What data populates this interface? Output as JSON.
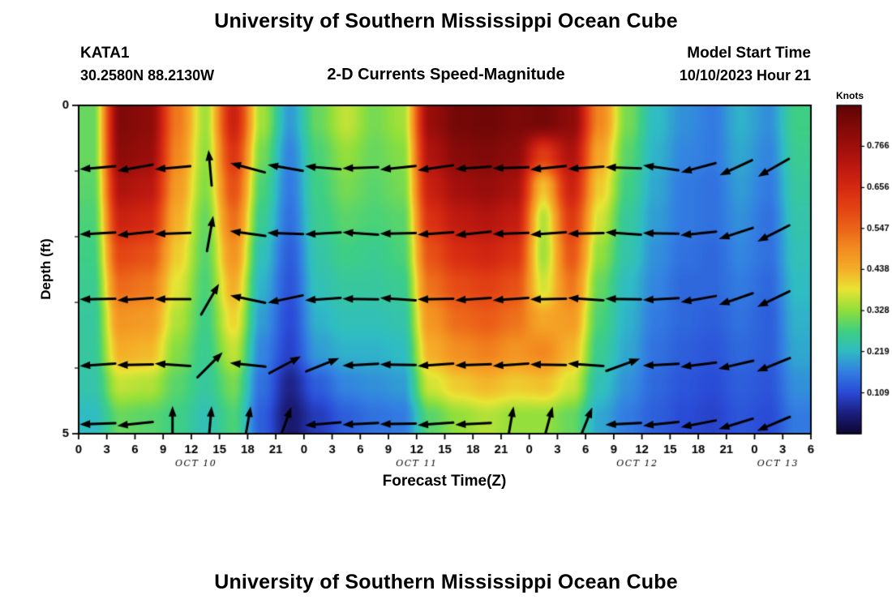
{
  "page": {
    "top_title": "University of Southern Mississippi Ocean Cube",
    "bottom_title": "University of Southern Mississippi Ocean Cube"
  },
  "header": {
    "station": "KATA1",
    "coordinates": "30.2580N  88.2130W",
    "subtitle": "2-D Currents Speed-Magnitude",
    "model_start_label": "Model Start Time",
    "model_start_value": "10/10/2023 Hour 21"
  },
  "chart_data": {
    "type": "heatmap",
    "title": "2-D Currents Speed-Magnitude",
    "xlabel": "Forecast Time(Z)",
    "ylabel": "Depth (ft)",
    "colorbar_label": "Knots",
    "x_range_hours": [
      0,
      78
    ],
    "x_major_tick_step_hours": 3,
    "x_tick_labels": [
      "0",
      "3",
      "6",
      "9",
      "12",
      "15",
      "18",
      "21",
      "0",
      "3",
      "6",
      "9",
      "12",
      "15",
      "18",
      "21",
      "0",
      "3",
      "6",
      "9",
      "12",
      "15",
      "18",
      "21",
      "0",
      "3",
      "6"
    ],
    "date_labels": [
      {
        "label": "OCT 10",
        "t": 12.5
      },
      {
        "label": "OCT 11",
        "t": 36
      },
      {
        "label": "OCT 12",
        "t": 59.5
      },
      {
        "label": "OCT 13",
        "t": 74.5
      }
    ],
    "depth_range_ft": [
      0,
      5
    ],
    "y_major_ticks": [
      0,
      5
    ],
    "y_minor_ticks": [
      1,
      2,
      3,
      4
    ],
    "y_tick_labels": [
      "0",
      "5"
    ],
    "value_units": "Knots",
    "value_range": [
      0,
      0.875
    ],
    "colorbar_ticks": [
      0.109,
      0.219,
      0.328,
      0.438,
      0.547,
      0.656,
      0.766
    ],
    "colormap_stops": [
      [
        0.0,
        "#0e0833"
      ],
      [
        0.06,
        "#1c1e7e"
      ],
      [
        0.125,
        "#2a4bd7"
      ],
      [
        0.19,
        "#3381e2"
      ],
      [
        0.25,
        "#2fbcc4"
      ],
      [
        0.31,
        "#3ecf83"
      ],
      [
        0.375,
        "#90df3b"
      ],
      [
        0.44,
        "#e9e434"
      ],
      [
        0.505,
        "#f5ab28"
      ],
      [
        0.565,
        "#f28c20"
      ],
      [
        0.625,
        "#ec6419"
      ],
      [
        0.69,
        "#e34214"
      ],
      [
        0.75,
        "#d52a12"
      ],
      [
        0.815,
        "#bd1910"
      ],
      [
        0.875,
        "#a00f0c"
      ],
      [
        1.0,
        "#600505"
      ]
    ],
    "grid": {
      "t_centers": [
        1.5,
        4.5,
        7.5,
        10.5,
        13.5,
        16.5,
        19.5,
        22.5,
        25.5,
        28.5,
        31.5,
        34.5,
        37.5,
        40.5,
        43.5,
        46.5,
        49.5,
        52.5,
        55.5,
        58.5,
        61.5,
        64.5,
        67.5,
        70.5,
        73.5,
        76.5
      ],
      "depth_centers": [
        0.25,
        0.75,
        1.25,
        1.75,
        2.25,
        2.75,
        3.25,
        3.75,
        4.25,
        4.75
      ],
      "speed_knots_columns": [
        [
          0.3,
          0.3,
          0.29,
          0.28,
          0.27,
          0.26,
          0.25,
          0.25,
          0.24,
          0.22
        ],
        [
          0.82,
          0.8,
          0.74,
          0.68,
          0.6,
          0.54,
          0.48,
          0.44,
          0.36,
          0.3
        ],
        [
          0.8,
          0.78,
          0.72,
          0.66,
          0.58,
          0.52,
          0.47,
          0.43,
          0.35,
          0.29
        ],
        [
          0.52,
          0.5,
          0.47,
          0.44,
          0.41,
          0.38,
          0.35,
          0.32,
          0.29,
          0.27
        ],
        [
          0.34,
          0.33,
          0.32,
          0.3,
          0.29,
          0.28,
          0.27,
          0.26,
          0.25,
          0.23
        ],
        [
          0.68,
          0.63,
          0.58,
          0.53,
          0.48,
          0.44,
          0.4,
          0.36,
          0.31,
          0.28
        ],
        [
          0.34,
          0.31,
          0.28,
          0.26,
          0.23,
          0.21,
          0.19,
          0.17,
          0.15,
          0.13
        ],
        [
          0.19,
          0.17,
          0.16,
          0.15,
          0.13,
          0.12,
          0.11,
          0.1,
          0.06,
          0.04
        ],
        [
          0.3,
          0.28,
          0.27,
          0.26,
          0.24,
          0.23,
          0.21,
          0.19,
          0.13,
          0.09
        ],
        [
          0.36,
          0.33,
          0.31,
          0.29,
          0.27,
          0.25,
          0.23,
          0.21,
          0.17,
          0.13
        ],
        [
          0.31,
          0.3,
          0.29,
          0.28,
          0.26,
          0.25,
          0.23,
          0.21,
          0.18,
          0.15
        ],
        [
          0.34,
          0.32,
          0.31,
          0.29,
          0.28,
          0.26,
          0.24,
          0.22,
          0.19,
          0.16
        ],
        [
          0.78,
          0.74,
          0.69,
          0.64,
          0.58,
          0.53,
          0.48,
          0.44,
          0.37,
          0.29
        ],
        [
          0.84,
          0.81,
          0.76,
          0.71,
          0.65,
          0.59,
          0.54,
          0.49,
          0.41,
          0.33
        ],
        [
          0.85,
          0.82,
          0.78,
          0.73,
          0.67,
          0.61,
          0.56,
          0.51,
          0.43,
          0.35
        ],
        [
          0.83,
          0.8,
          0.75,
          0.7,
          0.64,
          0.58,
          0.53,
          0.48,
          0.41,
          0.33
        ],
        [
          0.84,
          0.62,
          0.42,
          0.35,
          0.34,
          0.37,
          0.45,
          0.5,
          0.42,
          0.33
        ],
        [
          0.8,
          0.74,
          0.68,
          0.62,
          0.57,
          0.52,
          0.47,
          0.43,
          0.37,
          0.3
        ],
        [
          0.5,
          0.45,
          0.41,
          0.37,
          0.33,
          0.3,
          0.28,
          0.26,
          0.23,
          0.2
        ],
        [
          0.31,
          0.29,
          0.27,
          0.25,
          0.24,
          0.22,
          0.21,
          0.2,
          0.18,
          0.16
        ],
        [
          0.22,
          0.21,
          0.2,
          0.19,
          0.18,
          0.17,
          0.16,
          0.15,
          0.14,
          0.13
        ],
        [
          0.18,
          0.17,
          0.16,
          0.16,
          0.15,
          0.14,
          0.14,
          0.13,
          0.12,
          0.11
        ],
        [
          0.16,
          0.16,
          0.15,
          0.15,
          0.14,
          0.14,
          0.13,
          0.12,
          0.11,
          0.1
        ],
        [
          0.21,
          0.2,
          0.19,
          0.18,
          0.17,
          0.16,
          0.15,
          0.14,
          0.13,
          0.12
        ],
        [
          0.18,
          0.17,
          0.16,
          0.15,
          0.15,
          0.14,
          0.13,
          0.13,
          0.12,
          0.11
        ],
        [
          0.27,
          0.26,
          0.25,
          0.24,
          0.23,
          0.22,
          0.21,
          0.2,
          0.18,
          0.16
        ]
      ]
    },
    "arrows": {
      "color": "#000000",
      "angle_convention": "degrees CCW from east",
      "t": [
        2,
        6,
        10,
        14,
        18,
        22,
        26,
        30,
        34,
        38,
        42,
        46,
        50,
        54,
        58,
        62,
        66,
        70,
        74
      ],
      "rows": [
        {
          "depth": 0.95,
          "angles": [
            185,
            190,
            185,
            95,
            165,
            170,
            175,
            182,
            186,
            188,
            184,
            182,
            186,
            184,
            178,
            172,
            195,
            205,
            210
          ]
        },
        {
          "depth": 1.95,
          "angles": [
            183,
            186,
            182,
            80,
            172,
            178,
            183,
            176,
            181,
            184,
            186,
            182,
            184,
            181,
            176,
            179,
            186,
            198,
            207
          ]
        },
        {
          "depth": 2.95,
          "angles": [
            181,
            184,
            180,
            60,
            168,
            192,
            184,
            179,
            176,
            181,
            184,
            184,
            181,
            176,
            179,
            183,
            190,
            199,
            206
          ]
        },
        {
          "depth": 3.95,
          "angles": [
            184,
            181,
            176,
            45,
            174,
            28,
            22,
            183,
            179,
            184,
            182,
            184,
            179,
            176,
            20,
            183,
            187,
            193,
            202
          ]
        },
        {
          "depth": 4.85,
          "angles": [
            182,
            186,
            90,
            85,
            80,
            70,
            185,
            183,
            181,
            184,
            183,
            80,
            75,
            68,
            183,
            186,
            191,
            197,
            203
          ]
        }
      ]
    }
  }
}
